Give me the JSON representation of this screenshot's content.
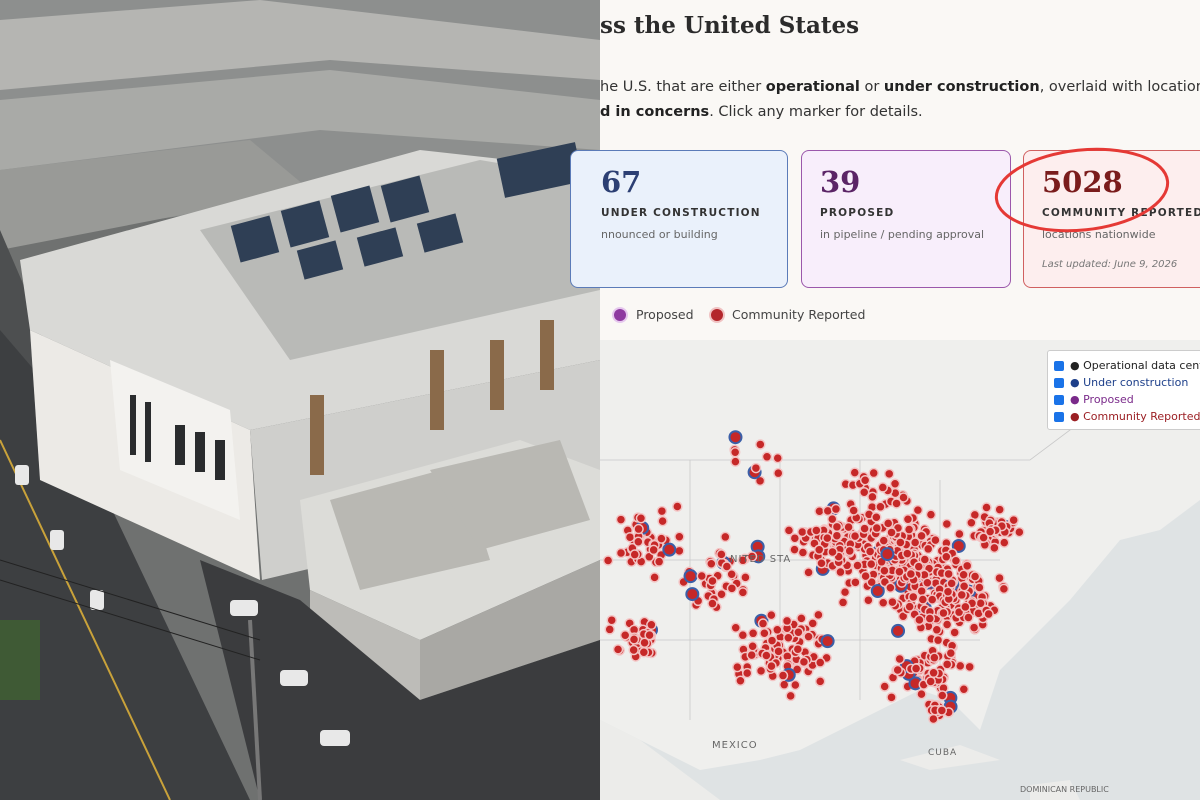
{
  "header": {
    "title": "ss the United States"
  },
  "intro": {
    "line1": [
      "he U.S. that are either ",
      "operational",
      " or ",
      "under construction",
      ", overlaid with locations wher"
    ],
    "line2": [
      "d in concerns",
      ". Click any marker for details."
    ]
  },
  "cards": [
    {
      "number": "67",
      "label": "UNDER CONSTRUCTION",
      "sub": "nnounced or building"
    },
    {
      "number": "39",
      "label": "PROPOSED",
      "sub": "in pipeline / pending approval"
    },
    {
      "number": "5028",
      "label": "COMMUNITY REPORTED",
      "sub": "locations nationwide",
      "updated": "Last updated: June 9, 2026"
    }
  ],
  "legend": [
    "Proposed",
    "Community Reported"
  ],
  "layer_control": [
    "● Operational data cente",
    "● Under construction",
    "● Proposed",
    "● Community Reported"
  ],
  "map_labels": {
    "country": "NITED STA",
    "mexico": "MEXICO",
    "cuba": "CUBA",
    "dominican": "DOMINICAN REPUBLIC"
  }
}
